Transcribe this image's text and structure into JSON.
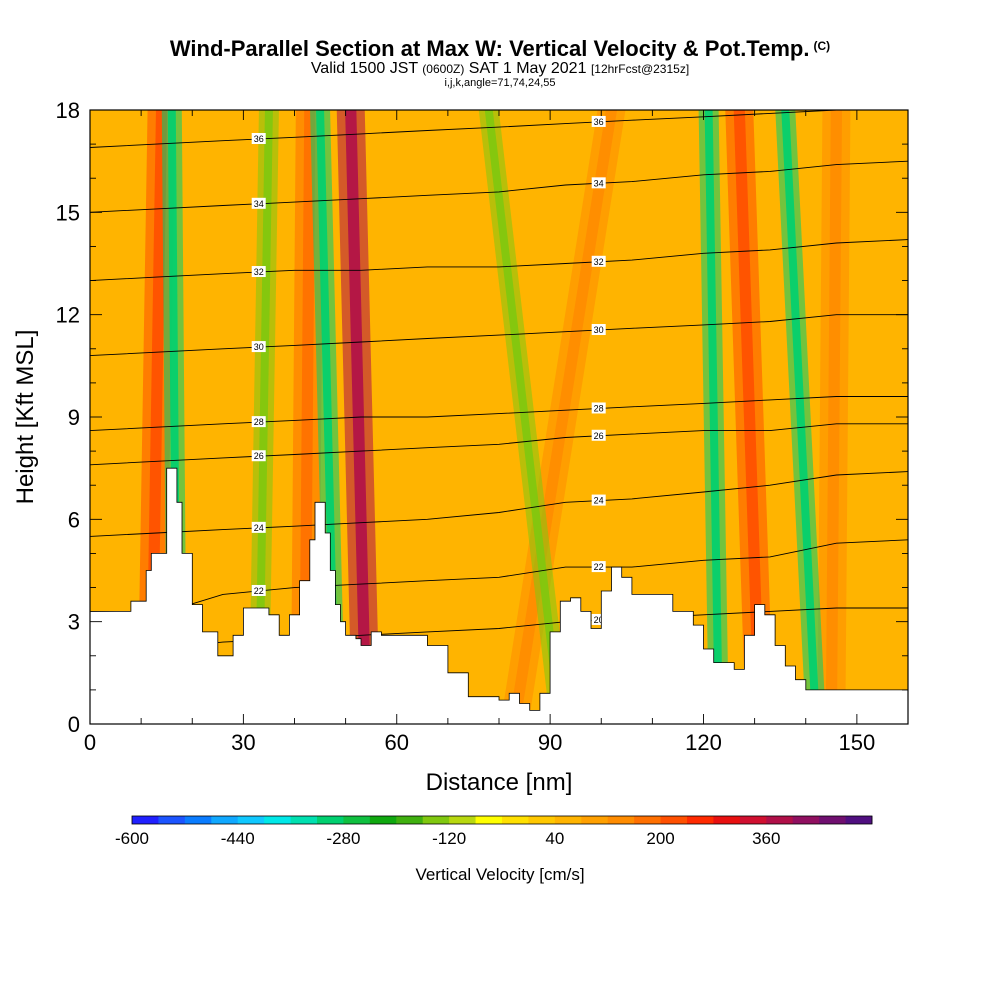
{
  "title": {
    "main": "Wind-Parallel Section at Max W: Vertical Velocity & Pot.Temp.",
    "copyright": "(C)",
    "valid_prefix": "Valid 1500 JST",
    "valid_utc": "(0600Z)",
    "valid_date": "SAT 1 May 2021",
    "forecast": "[12hrFcst@2315z]",
    "indices": "i,j,k,angle=71,74,24,55"
  },
  "chart_data": {
    "type": "heatmap",
    "xlabel": "Distance [nm]",
    "ylabel": "Height [Kft MSL]",
    "xlim": [
      0,
      160
    ],
    "ylim": [
      0,
      18
    ],
    "x_ticks": [
      "0",
      "30",
      "60",
      "90",
      "120",
      "150"
    ],
    "y_ticks": [
      "0",
      "3",
      "6",
      "9",
      "12",
      "15",
      "18"
    ],
    "colorbar": {
      "label": "Vertical Velocity [cm/s]",
      "range": [
        -600,
        500
      ],
      "step": 40,
      "tick_labels": [
        "-600",
        "-440",
        "-280",
        "-120",
        "40",
        "200",
        "360"
      ],
      "colors": [
        "#2020ff",
        "#1c54ff",
        "#0a7cff",
        "#10a8ff",
        "#10c8ff",
        "#00e8e8",
        "#00e0b0",
        "#00d070",
        "#10c040",
        "#10a810",
        "#40b010",
        "#80c810",
        "#b8d810",
        "#ffff00",
        "#ffe000",
        "#ffc800",
        "#ffb400",
        "#ffa000",
        "#ff8c00",
        "#ff7000",
        "#ff5000",
        "#ff2a00",
        "#e81010",
        "#d01030",
        "#b01048",
        "#901060",
        "#701070",
        "#501080"
      ]
    },
    "updraft_bands": [
      {
        "x_bottom": 12,
        "x_top": 14,
        "w": 200
      },
      {
        "x_bottom": 42,
        "x_top": 43,
        "w": 160
      },
      {
        "x_bottom": 54,
        "x_top": 51,
        "w": 360
      },
      {
        "x_bottom": 83,
        "x_top": 102,
        "w": 120
      },
      {
        "x_bottom": 131,
        "x_top": 127,
        "w": 200
      },
      {
        "x_bottom": 145,
        "x_top": 146,
        "w": 120
      }
    ],
    "downdraft_bands": [
      {
        "x_bottom": 17,
        "x_top": 16,
        "w": -320
      },
      {
        "x_bottom": 33,
        "x_top": 35,
        "w": -160
      },
      {
        "x_bottom": 48,
        "x_top": 45,
        "w": -300
      },
      {
        "x_bottom": 92,
        "x_top": 78,
        "w": -160
      },
      {
        "x_bottom": 123,
        "x_top": 121,
        "w": -300
      },
      {
        "x_bottom": 142,
        "x_top": 136,
        "w": -300
      }
    ],
    "terrain": {
      "x": [
        0,
        5,
        8,
        11,
        12,
        15,
        17,
        18,
        20,
        22,
        25,
        28,
        30,
        32,
        35,
        37,
        39,
        41,
        43,
        44,
        46,
        47,
        48,
        49,
        50,
        52,
        53,
        55,
        57,
        58,
        62,
        66,
        70,
        74,
        78,
        80,
        82,
        84,
        86,
        88,
        90,
        92,
        94,
        96,
        98,
        100,
        102,
        104,
        106,
        110,
        114,
        118,
        120,
        122,
        124,
        126,
        128,
        130,
        132,
        134,
        136,
        138,
        140,
        142,
        148,
        154,
        160
      ],
      "h": [
        3.3,
        3.3,
        3.6,
        4.5,
        5.0,
        7.5,
        6.5,
        5.0,
        3.5,
        2.7,
        2.0,
        2.6,
        3.4,
        3.4,
        3.2,
        2.6,
        3.2,
        4.2,
        5.4,
        6.5,
        5.6,
        4.5,
        3.5,
        3.0,
        2.6,
        2.5,
        2.3,
        2.7,
        2.6,
        2.6,
        2.6,
        2.3,
        1.5,
        0.8,
        0.8,
        0.7,
        0.9,
        0.6,
        0.4,
        0.9,
        2.7,
        3.6,
        3.7,
        3.3,
        2.8,
        3.9,
        4.6,
        4.3,
        3.8,
        3.8,
        3.3,
        2.9,
        2.2,
        1.8,
        1.8,
        1.6,
        2.6,
        3.5,
        3.2,
        2.3,
        1.7,
        1.3,
        1.0,
        1.0,
        1.0,
        1.0,
        1.0
      ]
    },
    "isentropes": [
      {
        "label": "20",
        "y": [
          2.0,
          2.2,
          2.4,
          2.5,
          2.6,
          2.7,
          2.8,
          3.0,
          3.1,
          3.2,
          3.3,
          3.4,
          3.4
        ]
      },
      {
        "label": "22",
        "y": [
          3.0,
          3.2,
          3.8,
          4.0,
          4.1,
          4.2,
          4.3,
          4.6,
          4.6,
          4.8,
          4.9,
          5.3,
          5.4
        ]
      },
      {
        "label": "24",
        "y": [
          5.5,
          5.6,
          5.7,
          5.8,
          5.9,
          6.0,
          6.2,
          6.5,
          6.6,
          6.8,
          7.0,
          7.3,
          7.4
        ]
      },
      {
        "label": "26",
        "y": [
          7.6,
          7.7,
          7.8,
          7.9,
          8.0,
          8.1,
          8.2,
          8.4,
          8.5,
          8.6,
          8.6,
          8.8,
          8.8
        ]
      },
      {
        "label": "28",
        "y": [
          8.6,
          8.7,
          8.8,
          8.9,
          9.0,
          9.0,
          9.1,
          9.2,
          9.3,
          9.4,
          9.5,
          9.6,
          9.6
        ]
      },
      {
        "label": "30",
        "y": [
          10.8,
          10.9,
          11.0,
          11.1,
          11.2,
          11.3,
          11.4,
          11.5,
          11.6,
          11.7,
          11.8,
          12.0,
          12.0
        ]
      },
      {
        "label": "32",
        "y": [
          13.0,
          13.1,
          13.2,
          13.3,
          13.3,
          13.4,
          13.4,
          13.5,
          13.6,
          13.8,
          13.9,
          14.1,
          14.2
        ]
      },
      {
        "label": "34",
        "y": [
          15.0,
          15.1,
          15.2,
          15.3,
          15.4,
          15.5,
          15.6,
          15.8,
          15.9,
          16.1,
          16.2,
          16.4,
          16.5
        ]
      },
      {
        "label": "36",
        "y": [
          16.9,
          17.0,
          17.1,
          17.2,
          17.3,
          17.4,
          17.5,
          17.6,
          17.7,
          17.8,
          17.9,
          18.0,
          18.0
        ]
      }
    ],
    "isentrope_x": [
      0,
      13,
      26,
      40,
      53,
      66,
      80,
      93,
      106,
      120,
      133,
      146,
      160
    ]
  }
}
